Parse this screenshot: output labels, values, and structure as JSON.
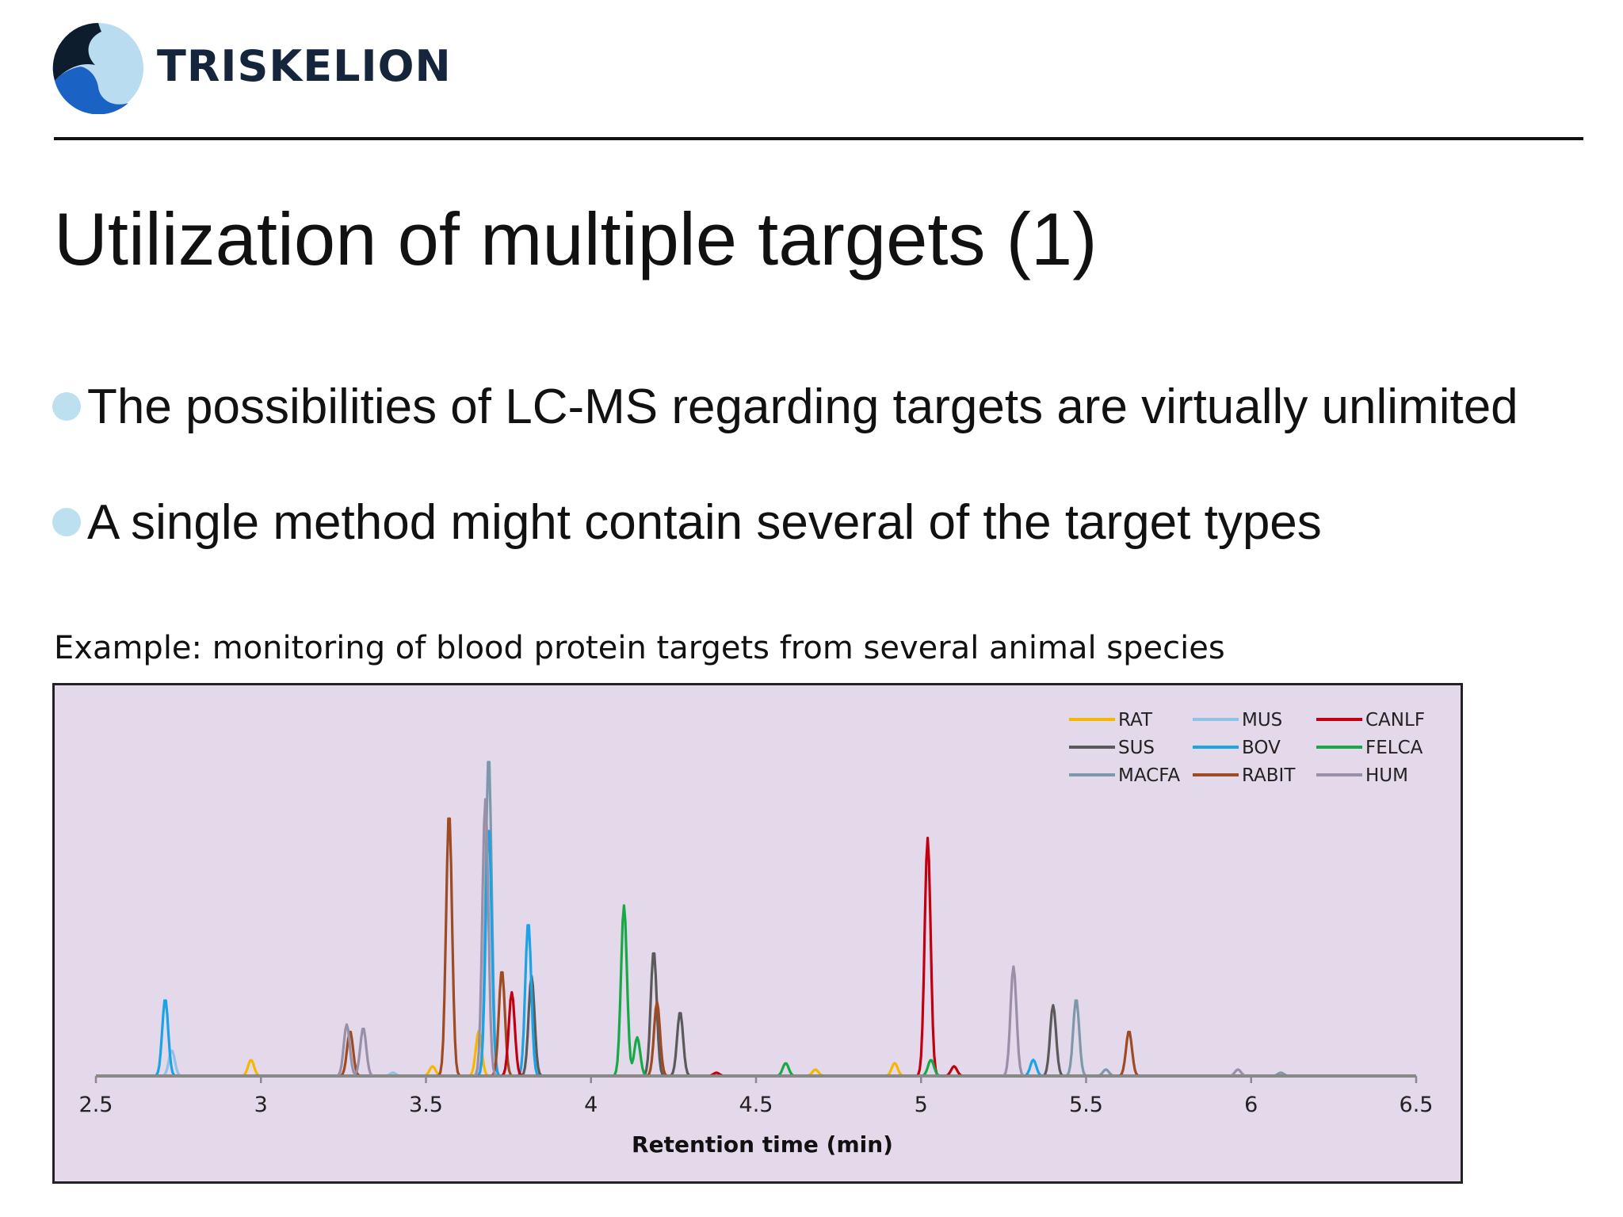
{
  "header": {
    "brand": "TRISKELION",
    "logo_colors": {
      "dark": "#0d1d2e",
      "blue": "#1a63c4",
      "light": "#b9dcf0"
    }
  },
  "slide": {
    "title": "Utilization of multiple targets (1)",
    "bullets": [
      "The possibilities of LC-MS regarding targets are virtually unlimited",
      "A single method might contain several of the target types"
    ],
    "caption": "Example: monitoring of blood protein targets from several animal species"
  },
  "chart_data": {
    "type": "line",
    "xlabel": "Retention time (min)",
    "ylabel": "",
    "xlim": [
      2.5,
      6.5
    ],
    "ylim": [
      0,
      1.0
    ],
    "xticks": [
      "2.5",
      "3",
      "3.5",
      "4",
      "4.5",
      "5",
      "5.5",
      "6",
      "6.5"
    ],
    "grid": false,
    "legend_position": "top-right",
    "background": "#e3d9ea",
    "series": [
      {
        "name": "RAT",
        "color": "#f5b800",
        "peaks": [
          [
            2.97,
            0.05
          ],
          [
            3.52,
            0.03
          ],
          [
            3.66,
            0.14
          ],
          [
            4.68,
            0.02
          ],
          [
            4.92,
            0.04
          ]
        ]
      },
      {
        "name": "SUS",
        "color": "#5a5a5a",
        "peaks": [
          [
            3.82,
            0.31
          ],
          [
            4.19,
            0.39
          ],
          [
            4.27,
            0.2
          ],
          [
            5.4,
            0.22
          ]
        ]
      },
      {
        "name": "MACFA",
        "color": "#7f97ab",
        "peaks": [
          [
            3.69,
            1.0
          ],
          [
            5.47,
            0.24
          ],
          [
            5.56,
            0.02
          ],
          [
            6.09,
            0.01
          ]
        ]
      },
      {
        "name": "MUS",
        "color": "#8ec2e6",
        "peaks": [
          [
            2.73,
            0.08
          ],
          [
            3.4,
            0.01
          ]
        ]
      },
      {
        "name": "BOV",
        "color": "#1aa3e6",
        "peaks": [
          [
            2.71,
            0.24
          ],
          [
            3.69,
            0.78
          ],
          [
            3.81,
            0.48
          ],
          [
            5.34,
            0.05
          ]
        ]
      },
      {
        "name": "RABIT",
        "color": "#9e4a22",
        "peaks": [
          [
            3.27,
            0.14
          ],
          [
            3.57,
            0.82
          ],
          [
            3.73,
            0.33
          ],
          [
            4.2,
            0.23
          ],
          [
            5.63,
            0.14
          ]
        ]
      },
      {
        "name": "CANLF",
        "color": "#c10010",
        "peaks": [
          [
            3.76,
            0.26
          ],
          [
            4.38,
            0.01
          ],
          [
            5.02,
            0.74
          ],
          [
            5.1,
            0.03
          ]
        ]
      },
      {
        "name": "FELCA",
        "color": "#17a848",
        "peaks": [
          [
            4.1,
            0.53
          ],
          [
            4.14,
            0.12
          ],
          [
            4.59,
            0.04
          ],
          [
            5.03,
            0.05
          ]
        ]
      },
      {
        "name": "HUM",
        "color": "#9890a8",
        "peaks": [
          [
            3.26,
            0.16
          ],
          [
            3.31,
            0.15
          ],
          [
            3.68,
            0.86
          ],
          [
            5.28,
            0.34
          ],
          [
            5.96,
            0.02
          ]
        ]
      }
    ]
  }
}
